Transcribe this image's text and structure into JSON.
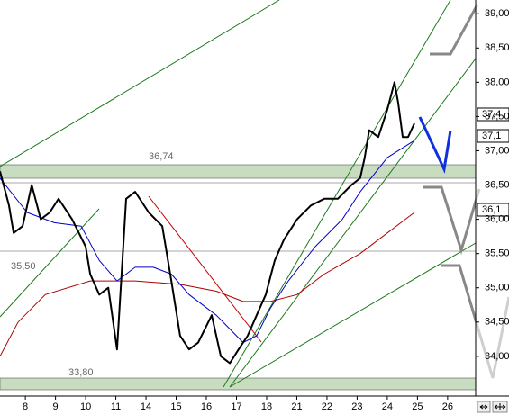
{
  "chart_data": {
    "type": "line",
    "xlim": [
      -0.84,
      14.93
    ],
    "ylim": [
      33.42,
      39.2
    ],
    "xticks": [
      {
        "value": 0,
        "label": "8"
      },
      {
        "value": 1,
        "label": "9"
      },
      {
        "value": 2,
        "label": "10"
      },
      {
        "value": 3,
        "label": "11"
      },
      {
        "value": 4,
        "label": "14"
      },
      {
        "value": 5,
        "label": "15"
      },
      {
        "value": 6,
        "label": "16"
      },
      {
        "value": 7,
        "label": "17"
      },
      {
        "value": 8,
        "label": "18"
      },
      {
        "value": 9,
        "label": "21"
      },
      {
        "value": 10,
        "label": "22"
      },
      {
        "value": 11,
        "label": "23"
      },
      {
        "value": 12,
        "label": "24"
      },
      {
        "value": 13,
        "label": "25"
      },
      {
        "value": 14,
        "label": "26"
      }
    ],
    "yticks": [
      {
        "value": 39,
        "label": "39,00"
      },
      {
        "value": 38.5,
        "label": "38,50"
      },
      {
        "value": 38,
        "label": "38,00"
      },
      {
        "value": 37.5,
        "label": "37,50"
      },
      {
        "value": 37,
        "label": "37,00"
      },
      {
        "value": 36.5,
        "label": "36,50"
      },
      {
        "value": 36,
        "label": "36,00"
      },
      {
        "value": 35.5,
        "label": "35,50"
      },
      {
        "value": 35,
        "label": "35,00"
      },
      {
        "value": 34.5,
        "label": "34,50"
      },
      {
        "value": 34,
        "label": "34,00"
      }
    ],
    "series": [
      {
        "color": "#b00000",
        "x": [
          -0.84,
          -0.24,
          0.66,
          2.15,
          3.64,
          5.13,
          6.33,
          7.22,
          8.12,
          9.01,
          9.91,
          11.1,
          12.0,
          12.9
        ],
        "values": [
          34.0,
          34.5,
          34.9,
          35.1,
          35.1,
          35.05,
          34.95,
          34.8,
          34.8,
          34.9,
          35.2,
          35.5,
          35.8,
          36.1
        ]
      },
      {
        "color": "#0000c8",
        "x": [
          -0.84,
          0.06,
          0.96,
          1.85,
          2.45,
          3.04,
          3.64,
          4.24,
          4.84,
          5.43,
          6.33,
          7.22,
          7.67,
          8.12,
          8.72,
          9.61,
          10.51,
          11.1,
          12.0,
          12.9
        ],
        "values": [
          36.6,
          36.1,
          35.95,
          35.9,
          35.4,
          35.1,
          35.3,
          35.3,
          35.2,
          34.9,
          34.6,
          34.2,
          34.3,
          34.7,
          35.1,
          35.6,
          36.0,
          36.4,
          36.9,
          37.15
        ]
      },
      {
        "color": "#000000",
        "x": [
          -0.84,
          -0.54,
          -0.39,
          -0.09,
          0.21,
          0.51,
          0.81,
          1.1,
          1.55,
          2.0,
          2.15,
          2.45,
          2.75,
          3.04,
          3.34,
          3.64,
          4.09,
          4.54,
          4.84,
          5.13,
          5.43,
          5.73,
          6.18,
          6.48,
          6.78,
          7.07,
          7.37,
          7.67,
          7.97,
          8.27,
          8.57,
          9.01,
          9.46,
          9.91,
          10.36,
          10.81,
          11.1,
          11.25,
          11.4,
          11.7,
          12.0,
          12.24,
          12.36,
          12.51,
          12.69,
          12.9
        ],
        "values": [
          36.7,
          36.2,
          35.8,
          35.9,
          36.5,
          36.0,
          36.1,
          36.3,
          36.0,
          35.6,
          35.2,
          34.9,
          35.0,
          34.1,
          36.3,
          36.4,
          36.1,
          35.9,
          35.1,
          34.3,
          34.1,
          34.2,
          34.6,
          34.0,
          33.9,
          34.1,
          34.3,
          34.6,
          34.9,
          35.4,
          35.7,
          36.0,
          36.2,
          36.3,
          36.3,
          36.5,
          36.6,
          36.9,
          37.3,
          37.2,
          37.6,
          38.0,
          37.7,
          37.2,
          37.2,
          37.4
        ]
      }
    ],
    "annotations": [
      "36,74",
      "35,50",
      "33,80"
    ],
    "last_labels": [
      "37,4",
      "37,1",
      "36,1"
    ]
  }
}
